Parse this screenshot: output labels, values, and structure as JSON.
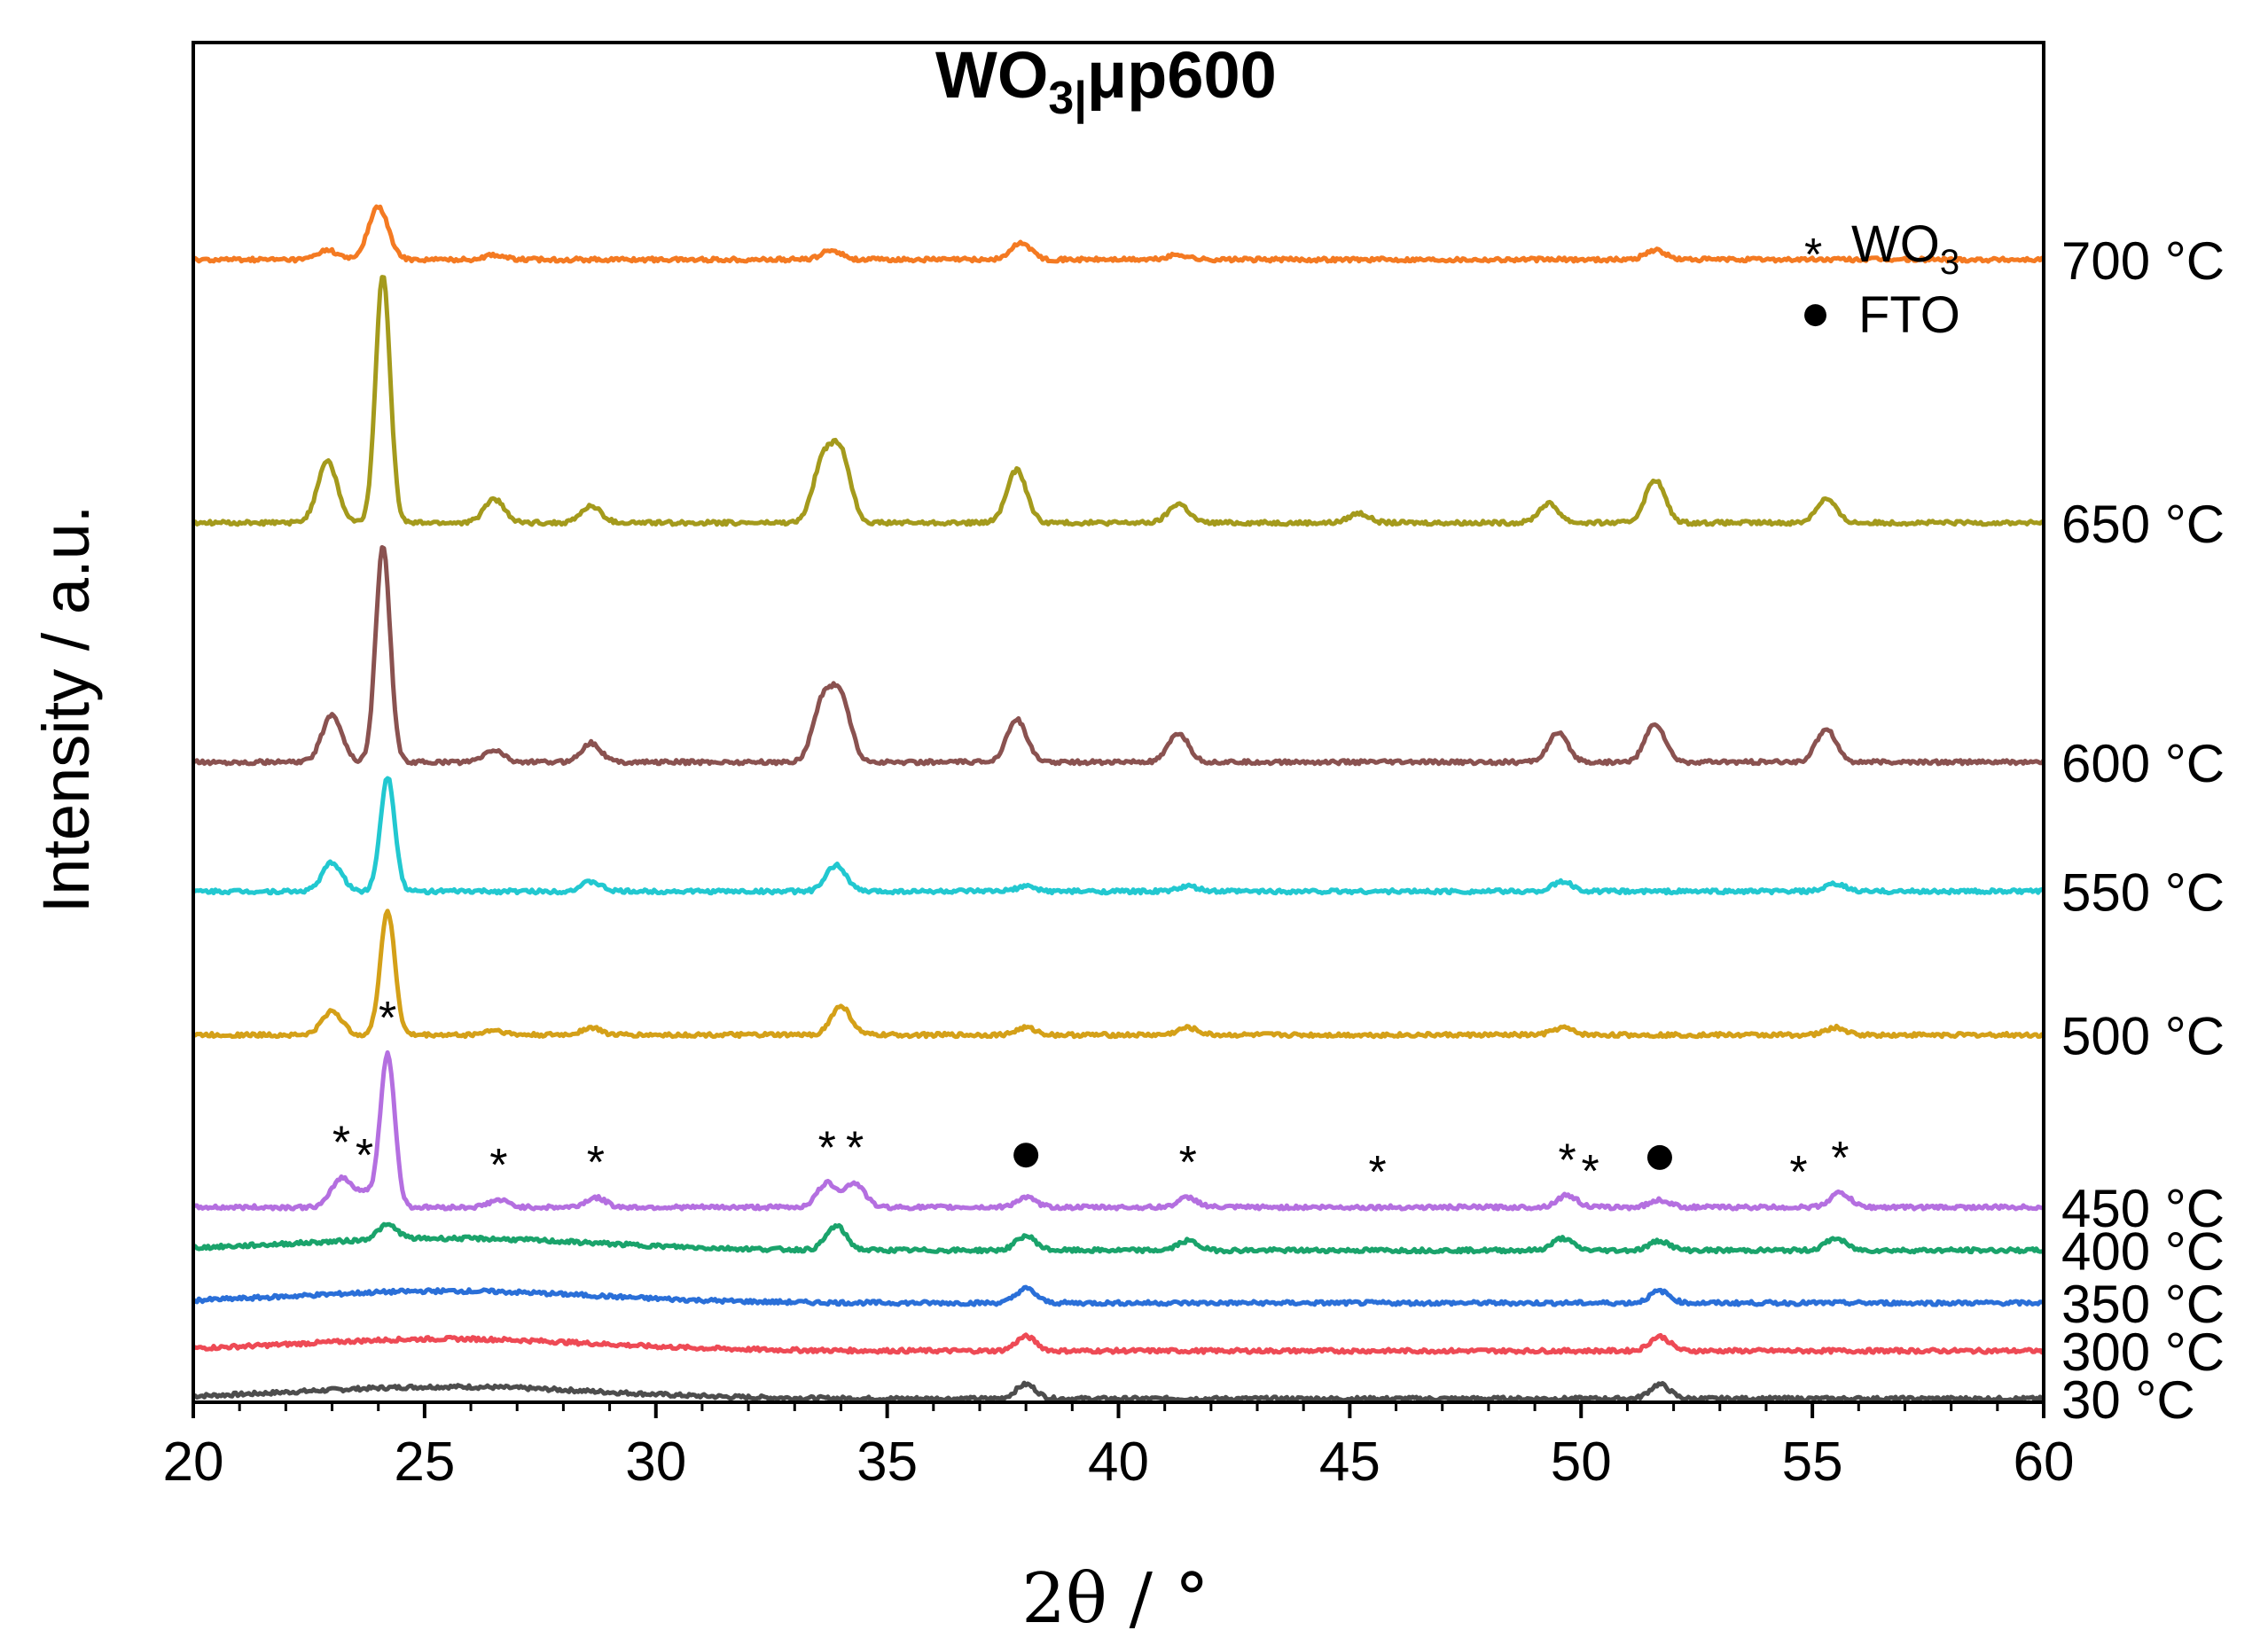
{
  "chart_data": {
    "type": "line",
    "title": "WO3|μp600",
    "title_main": "WO",
    "title_sub": "3|",
    "title_rest": "μp600",
    "xlabel": "2θ / °",
    "ylabel": "Intensity / a.u.",
    "xlim": [
      20,
      60
    ],
    "x_ticks": [
      20,
      25,
      30,
      35,
      40,
      45,
      50,
      55,
      60
    ],
    "x_tick_labels": [
      "20",
      "25",
      "30",
      "35",
      "40",
      "45",
      "50",
      "55",
      "60"
    ],
    "y_ticks_shown": false,
    "legend": {
      "placement": "top-right",
      "items": [
        {
          "symbol": "*",
          "label": "WO",
          "sub": "3"
        },
        {
          "symbol": "●",
          "label": "FTO",
          "sub": ""
        }
      ]
    },
    "annotations_on": "450 °C",
    "wo3_peaks": [
      23.2,
      23.7,
      24.2,
      26.6,
      28.7,
      33.7,
      34.3,
      41.5,
      45.6,
      49.7,
      50.2,
      54.7,
      55.6
    ],
    "fto_peaks": [
      38.0,
      51.7
    ],
    "series": [
      {
        "name": "30 °C",
        "label": "30 °C",
        "color": "#4d4d4d",
        "baseline": 0.0,
        "peaks": [
          [
            38.0,
            0.3
          ],
          [
            51.7,
            0.3
          ]
        ]
      },
      {
        "name": "300 °C",
        "label": "300 °C",
        "color": "#ee4a55",
        "baseline": 1.0,
        "peaks": [
          [
            38.0,
            0.3
          ],
          [
            51.7,
            0.3
          ]
        ]
      },
      {
        "name": "350 °C",
        "label": "350 °C",
        "color": "#2a6fd8",
        "baseline": 2.0,
        "peaks": [
          [
            38.0,
            0.3
          ],
          [
            51.7,
            0.25
          ]
        ]
      },
      {
        "name": "400 °C",
        "label": "400 °C",
        "color": "#1aa36b",
        "baseline": 3.1,
        "peaks": [
          [
            24.2,
            0.3
          ],
          [
            33.9,
            0.5
          ],
          [
            38.0,
            0.3
          ],
          [
            41.5,
            0.2
          ],
          [
            49.6,
            0.25
          ],
          [
            51.7,
            0.2
          ],
          [
            55.5,
            0.25
          ]
        ]
      },
      {
        "name": "450 °C",
        "label": "450 °C",
        "color": "#b46fe0",
        "baseline": 4.0,
        "peaks": [
          [
            23.2,
            0.6
          ],
          [
            23.7,
            0.3
          ],
          [
            24.2,
            3.2
          ],
          [
            26.6,
            0.15
          ],
          [
            28.7,
            0.2
          ],
          [
            33.7,
            0.5
          ],
          [
            34.3,
            0.5
          ],
          [
            38.0,
            0.2
          ],
          [
            41.5,
            0.2
          ],
          [
            49.7,
            0.25
          ],
          [
            51.7,
            0.15
          ],
          [
            55.6,
            0.3
          ]
        ]
      },
      {
        "name": "500 °C",
        "label": "500 °C",
        "color": "#d4a018",
        "baseline": 7.6,
        "peaks": [
          [
            23.0,
            0.5
          ],
          [
            24.2,
            2.6
          ],
          [
            26.5,
            0.1
          ],
          [
            28.6,
            0.15
          ],
          [
            34.0,
            0.6
          ],
          [
            38.0,
            0.15
          ],
          [
            41.5,
            0.15
          ],
          [
            49.6,
            0.15
          ],
          [
            55.5,
            0.15
          ]
        ]
      },
      {
        "name": "550 °C",
        "label": "550 °C",
        "color": "#22c8d0",
        "baseline": 10.6,
        "peaks": [
          [
            23.0,
            0.6
          ],
          [
            24.2,
            2.4
          ],
          [
            28.6,
            0.2
          ],
          [
            33.9,
            0.55
          ],
          [
            38.0,
            0.1
          ],
          [
            41.5,
            0.1
          ],
          [
            49.6,
            0.2
          ],
          [
            55.5,
            0.15
          ]
        ]
      },
      {
        "name": "600 °C",
        "label": "600 °C",
        "color": "#8a5250",
        "baseline": 13.3,
        "peaks": [
          [
            23.0,
            1.0
          ],
          [
            24.1,
            4.5
          ],
          [
            26.5,
            0.25
          ],
          [
            28.6,
            0.4
          ],
          [
            33.6,
            1.2
          ],
          [
            34.0,
            1.3
          ],
          [
            37.8,
            0.9
          ],
          [
            41.3,
            0.6
          ],
          [
            49.5,
            0.6
          ],
          [
            51.6,
            0.8
          ],
          [
            55.3,
            0.7
          ]
        ]
      },
      {
        "name": "650 °C",
        "label": "650 °C",
        "color": "#a49a1c",
        "baseline": 18.3,
        "peaks": [
          [
            22.9,
            1.3
          ],
          [
            24.1,
            5.2
          ],
          [
            26.5,
            0.5
          ],
          [
            28.6,
            0.35
          ],
          [
            33.6,
            1.2
          ],
          [
            34.0,
            1.4
          ],
          [
            37.8,
            1.1
          ],
          [
            41.3,
            0.4
          ],
          [
            45.2,
            0.2
          ],
          [
            49.3,
            0.4
          ],
          [
            51.6,
            0.9
          ],
          [
            55.3,
            0.5
          ]
        ]
      },
      {
        "name": "700 °C",
        "label": "700 °C",
        "color": "#f47a22",
        "baseline": 23.8,
        "peaks": [
          [
            22.9,
            0.2
          ],
          [
            24.0,
            1.1
          ],
          [
            26.5,
            0.1
          ],
          [
            33.8,
            0.2
          ],
          [
            37.9,
            0.35
          ],
          [
            41.3,
            0.1
          ],
          [
            51.6,
            0.2
          ]
        ]
      }
    ]
  }
}
